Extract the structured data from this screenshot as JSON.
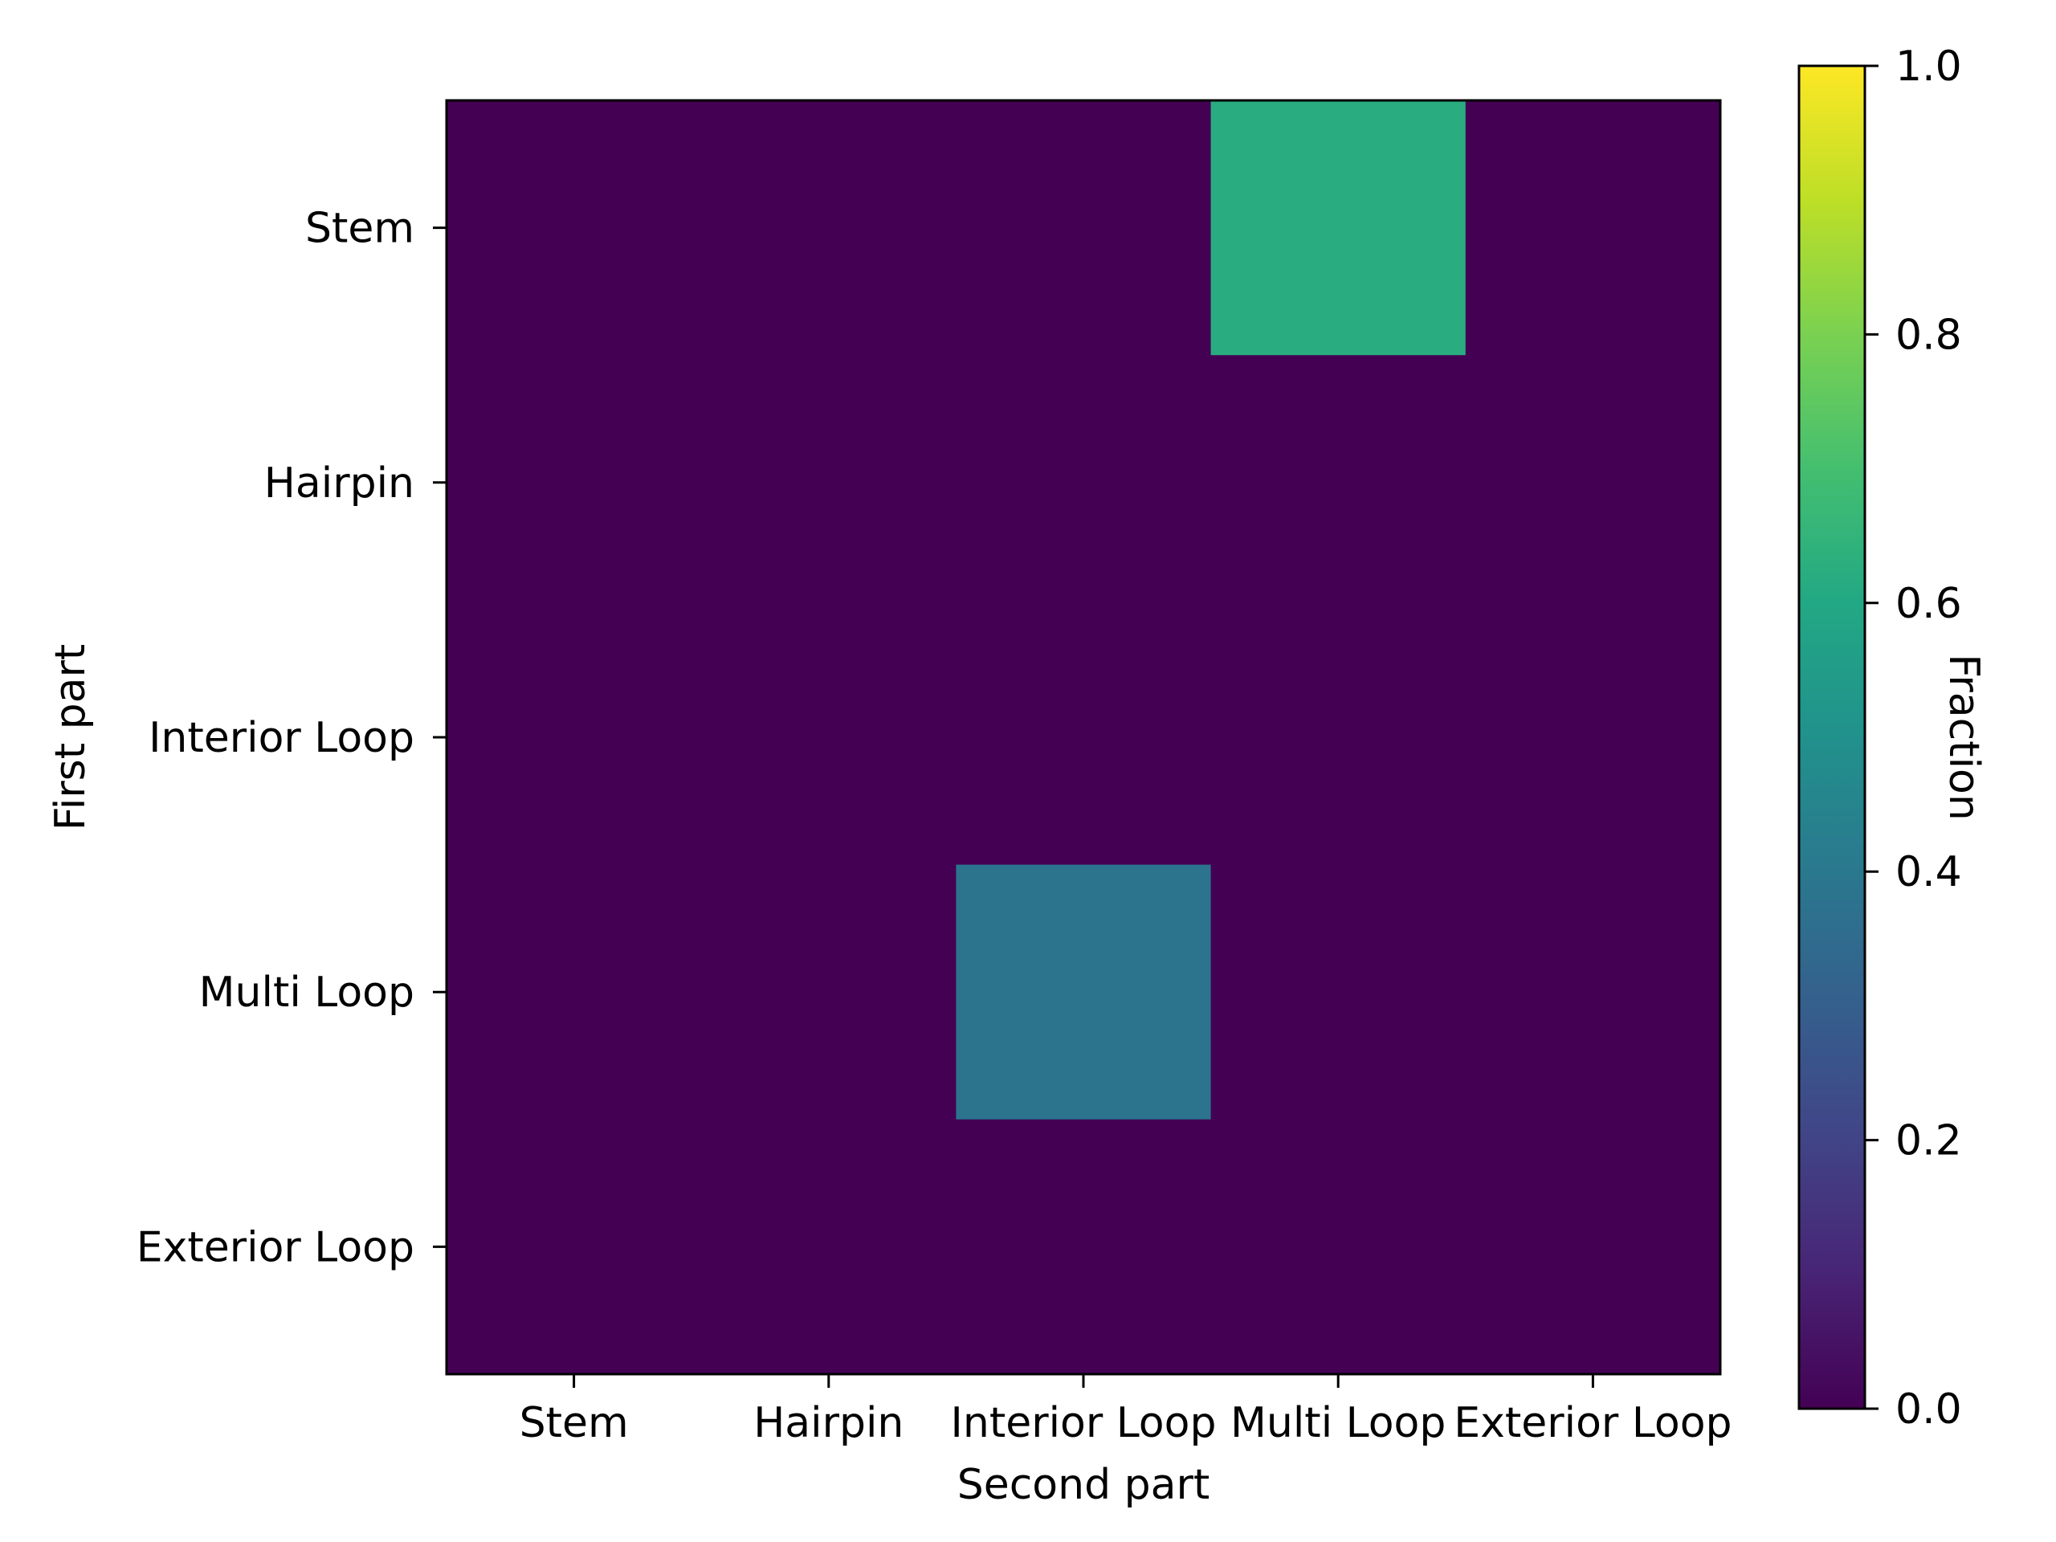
{
  "chart_data": {
    "type": "heatmap",
    "xlabel": "Second part",
    "ylabel": "First part",
    "x_categories": [
      "Stem",
      "Hairpin",
      "Interior Loop",
      "Multi Loop",
      "Exterior Loop"
    ],
    "y_categories": [
      "Stem",
      "Hairpin",
      "Interior Loop",
      "Multi Loop",
      "Exterior Loop"
    ],
    "values": [
      [
        0,
        0,
        0,
        0.62,
        0
      ],
      [
        0,
        0,
        0,
        0,
        0
      ],
      [
        0,
        0,
        0,
        0,
        0
      ],
      [
        0,
        0,
        0.38,
        0,
        0
      ],
      [
        0,
        0,
        0,
        0,
        0
      ]
    ],
    "colormap": "viridis",
    "colorbar": {
      "label": "Fraction",
      "range": [
        0,
        1
      ],
      "ticks": [
        0,
        0.2,
        0.4,
        0.6,
        0.8,
        1
      ],
      "tick_labels": [
        "0.0",
        "0.2",
        "0.4",
        "0.6",
        "0.8",
        "1.0"
      ]
    }
  }
}
